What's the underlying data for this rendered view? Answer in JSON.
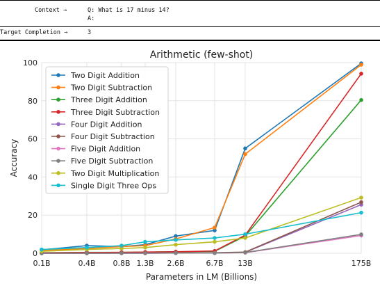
{
  "example_table": {
    "context_label": "Context →",
    "question_line": "Q: What is 17 minus 14?",
    "answer_line": "A:",
    "target_label": "Target Completion →",
    "target_value": "3"
  },
  "chart_data": {
    "type": "line",
    "title": "Arithmetic (few-shot)",
    "xlabel": "Parameters in LM (Billions)",
    "ylabel": "Accuracy",
    "x": [
      "0.1B",
      "0.4B",
      "0.8B",
      "1.3B",
      "2.6B",
      "6.7B",
      "13B",
      "175B"
    ],
    "ylim": [
      0,
      100
    ],
    "yticks": [
      0,
      20,
      40,
      60,
      80,
      100
    ],
    "grid": true,
    "legend_position": "top-left",
    "series": [
      {
        "name": "Two Digit Addition",
        "color": "#1f77b4",
        "values": [
          1.8,
          4.0,
          3.5,
          4.5,
          9.0,
          12.0,
          55.0,
          99.6
        ]
      },
      {
        "name": "Two Digit Subtraction",
        "color": "#ff7f0e",
        "values": [
          1.5,
          2.5,
          3.5,
          4.0,
          7.5,
          13.5,
          52.0,
          98.9
        ]
      },
      {
        "name": "Three Digit Addition",
        "color": "#2ca02c",
        "values": [
          0.3,
          0.5,
          0.5,
          0.6,
          0.8,
          1.0,
          9.0,
          80.4
        ]
      },
      {
        "name": "Three Digit Subtraction",
        "color": "#d62728",
        "values": [
          0.2,
          0.4,
          0.5,
          0.6,
          0.8,
          1.2,
          9.5,
          94.2
        ]
      },
      {
        "name": "Four Digit Addition",
        "color": "#9467bd",
        "values": [
          0.0,
          0.0,
          0.1,
          0.1,
          0.2,
          0.2,
          0.5,
          25.5
        ]
      },
      {
        "name": "Four Digit Subtraction",
        "color": "#8c564b",
        "values": [
          0.0,
          0.0,
          0.1,
          0.1,
          0.2,
          0.3,
          0.6,
          26.8
        ]
      },
      {
        "name": "Five Digit Addition",
        "color": "#e377c2",
        "values": [
          0.0,
          0.0,
          0.0,
          0.0,
          0.1,
          0.1,
          0.3,
          9.3
        ]
      },
      {
        "name": "Five Digit Subtraction",
        "color": "#7f7f7f",
        "values": [
          0.0,
          0.0,
          0.0,
          0.0,
          0.1,
          0.1,
          0.4,
          9.9
        ]
      },
      {
        "name": "Two Digit Multiplication",
        "color": "#bcbd22",
        "values": [
          1.0,
          2.0,
          2.5,
          3.0,
          4.5,
          6.0,
          8.0,
          29.2
        ]
      },
      {
        "name": "Single Digit Three Ops",
        "color": "#17becf",
        "values": [
          2.0,
          3.0,
          4.0,
          6.0,
          7.0,
          8.0,
          10.0,
          21.3
        ]
      }
    ]
  }
}
